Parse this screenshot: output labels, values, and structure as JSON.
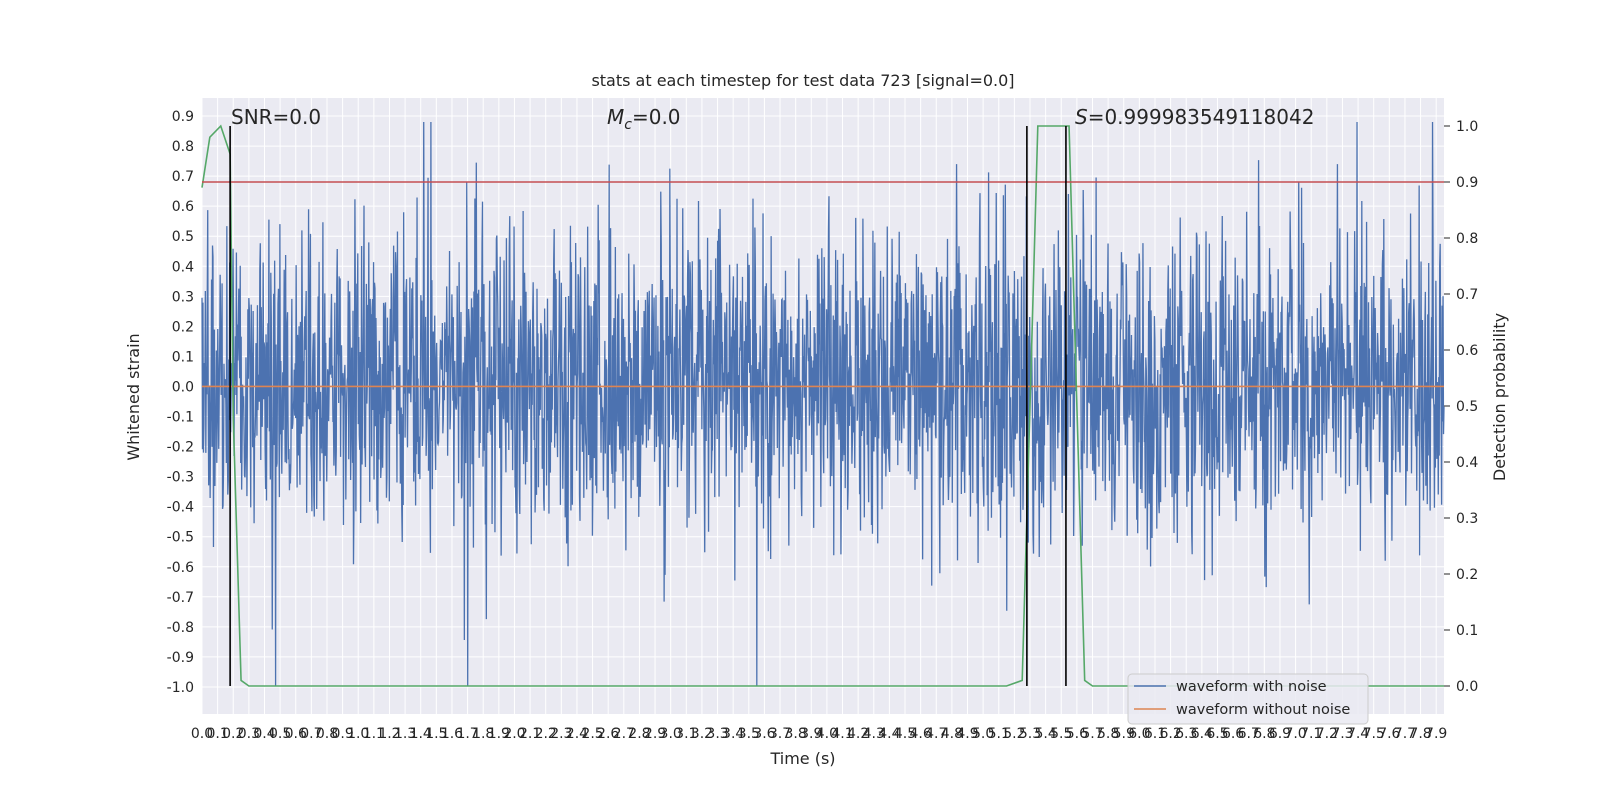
{
  "chart_data": {
    "type": "line",
    "title": "stats at each timestep for test data 723 [signal=0.0]",
    "xlabel": "Time (s)",
    "ylabel": "Whitened strain",
    "ylabel_right": "Detection probability",
    "xlim": [
      0.0,
      7.95
    ],
    "ylim": [
      -1.09,
      0.96
    ],
    "ylim_right": [
      -0.05,
      1.05
    ],
    "x_ticks": [
      "0.0",
      "0.1",
      "0.2",
      "0.3",
      "0.4",
      "0.5",
      "0.6",
      "0.7",
      "0.8",
      "0.9",
      "1.0",
      "1.1",
      "1.2",
      "1.3",
      "1.4",
      "1.5",
      "1.6",
      "1.7",
      "1.8",
      "1.9",
      "2.0",
      "2.1",
      "2.2",
      "2.3",
      "2.4",
      "2.5",
      "2.6",
      "2.7",
      "2.8",
      "2.9",
      "3.0",
      "3.1",
      "3.2",
      "3.3",
      "3.4",
      "3.5",
      "3.6",
      "3.7",
      "3.8",
      "3.9",
      "4.0",
      "4.1",
      "4.2",
      "4.3",
      "4.4",
      "4.5",
      "4.6",
      "4.7",
      "4.8",
      "4.9",
      "5.0",
      "5.1",
      "5.2",
      "5.3",
      "5.4",
      "5.5",
      "5.6",
      "5.7",
      "5.8",
      "5.9",
      "6.0",
      "6.1",
      "6.2",
      "6.3",
      "6.4",
      "6.5",
      "6.6",
      "6.7",
      "6.8",
      "6.9",
      "7.0",
      "7.1",
      "7.2",
      "7.3",
      "7.4",
      "7.5",
      "7.6",
      "7.7",
      "7.8",
      "7.9"
    ],
    "y_ticks_left": [
      "0.9",
      "0.8",
      "0.7",
      "0.6",
      "0.5",
      "0.4",
      "0.3",
      "0.2",
      "0.1",
      "0.0",
      "-0.1",
      "-0.2",
      "-0.3",
      "-0.4",
      "-0.5",
      "-0.6",
      "-0.7",
      "-0.8",
      "-0.9",
      "-1.0"
    ],
    "y_ticks_right": [
      "1.0",
      "0.9",
      "0.8",
      "0.7",
      "0.6",
      "0.5",
      "0.4",
      "0.3",
      "0.2",
      "0.1",
      "0.0"
    ],
    "annotations": {
      "snr": "SNR=0.0",
      "mc_symbol": "M",
      "mc_sub": "c",
      "mc_value": "=0.0",
      "s_symbol": "S",
      "s_value": "=0.999983549118042"
    },
    "legend": {
      "location": "lower-right",
      "entries": [
        "waveform with noise",
        "waveform without noise"
      ]
    },
    "series": [
      {
        "name": "waveform with noise",
        "color": "#4c72b0",
        "axis": "left",
        "description": "noisy whitened strain, envelope roughly -0.8 to 0.8",
        "seed": 723
      },
      {
        "name": "waveform without noise",
        "color": "#dd8452",
        "axis": "left",
        "x": [
          0.0,
          7.95
        ],
        "y": [
          0.0,
          0.0
        ]
      },
      {
        "name": "detection probability",
        "color": "#55a868",
        "axis": "right",
        "x": [
          0.0,
          0.05,
          0.12,
          0.18,
          0.2,
          0.25,
          0.3,
          5.15,
          5.25,
          5.3,
          5.35,
          5.45,
          5.55,
          5.6,
          5.65,
          5.7,
          7.95
        ],
        "y": [
          0.89,
          0.98,
          1.0,
          0.95,
          0.48,
          0.01,
          0.0,
          0.0,
          0.01,
          0.5,
          1.0,
          1.0,
          1.0,
          0.5,
          0.01,
          0.0,
          0.0
        ]
      },
      {
        "name": "threshold",
        "color": "#c44e52",
        "axis": "right",
        "x": [
          0.0,
          7.95
        ],
        "y": [
          0.9,
          0.9
        ]
      }
    ],
    "vertical_lines": [
      0.18,
      5.28,
      5.53
    ],
    "colors": {
      "background": "#eaeaf2",
      "grid": "#ffffff",
      "vline": "#000000"
    }
  }
}
